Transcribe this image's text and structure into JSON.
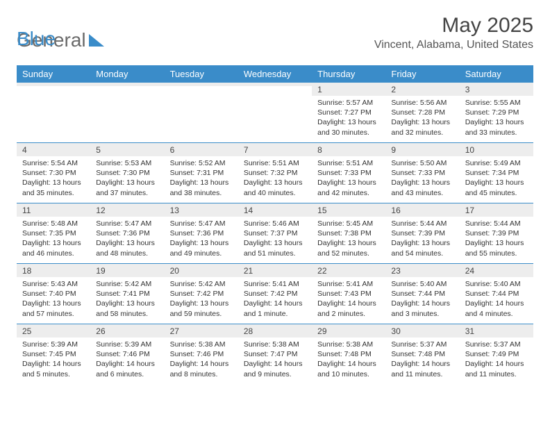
{
  "brand": {
    "general": "General",
    "blue": "Blue"
  },
  "title": {
    "month": "May 2025",
    "location": "Vincent, Alabama, United States"
  },
  "colors": {
    "accent": "#3a8cc9",
    "header_text": "#ffffff",
    "gray_bar": "#ededed",
    "text": "#333333"
  },
  "day_names": [
    "Sunday",
    "Monday",
    "Tuesday",
    "Wednesday",
    "Thursday",
    "Friday",
    "Saturday"
  ],
  "cells": [
    {
      "date": "",
      "sunrise": "",
      "sunset": "",
      "daylight": ""
    },
    {
      "date": "",
      "sunrise": "",
      "sunset": "",
      "daylight": ""
    },
    {
      "date": "",
      "sunrise": "",
      "sunset": "",
      "daylight": ""
    },
    {
      "date": "",
      "sunrise": "",
      "sunset": "",
      "daylight": ""
    },
    {
      "date": "1",
      "sunrise": "Sunrise: 5:57 AM",
      "sunset": "Sunset: 7:27 PM",
      "daylight": "Daylight: 13 hours and 30 minutes."
    },
    {
      "date": "2",
      "sunrise": "Sunrise: 5:56 AM",
      "sunset": "Sunset: 7:28 PM",
      "daylight": "Daylight: 13 hours and 32 minutes."
    },
    {
      "date": "3",
      "sunrise": "Sunrise: 5:55 AM",
      "sunset": "Sunset: 7:29 PM",
      "daylight": "Daylight: 13 hours and 33 minutes."
    },
    {
      "date": "4",
      "sunrise": "Sunrise: 5:54 AM",
      "sunset": "Sunset: 7:30 PM",
      "daylight": "Daylight: 13 hours and 35 minutes."
    },
    {
      "date": "5",
      "sunrise": "Sunrise: 5:53 AM",
      "sunset": "Sunset: 7:30 PM",
      "daylight": "Daylight: 13 hours and 37 minutes."
    },
    {
      "date": "6",
      "sunrise": "Sunrise: 5:52 AM",
      "sunset": "Sunset: 7:31 PM",
      "daylight": "Daylight: 13 hours and 38 minutes."
    },
    {
      "date": "7",
      "sunrise": "Sunrise: 5:51 AM",
      "sunset": "Sunset: 7:32 PM",
      "daylight": "Daylight: 13 hours and 40 minutes."
    },
    {
      "date": "8",
      "sunrise": "Sunrise: 5:51 AM",
      "sunset": "Sunset: 7:33 PM",
      "daylight": "Daylight: 13 hours and 42 minutes."
    },
    {
      "date": "9",
      "sunrise": "Sunrise: 5:50 AM",
      "sunset": "Sunset: 7:33 PM",
      "daylight": "Daylight: 13 hours and 43 minutes."
    },
    {
      "date": "10",
      "sunrise": "Sunrise: 5:49 AM",
      "sunset": "Sunset: 7:34 PM",
      "daylight": "Daylight: 13 hours and 45 minutes."
    },
    {
      "date": "11",
      "sunrise": "Sunrise: 5:48 AM",
      "sunset": "Sunset: 7:35 PM",
      "daylight": "Daylight: 13 hours and 46 minutes."
    },
    {
      "date": "12",
      "sunrise": "Sunrise: 5:47 AM",
      "sunset": "Sunset: 7:36 PM",
      "daylight": "Daylight: 13 hours and 48 minutes."
    },
    {
      "date": "13",
      "sunrise": "Sunrise: 5:47 AM",
      "sunset": "Sunset: 7:36 PM",
      "daylight": "Daylight: 13 hours and 49 minutes."
    },
    {
      "date": "14",
      "sunrise": "Sunrise: 5:46 AM",
      "sunset": "Sunset: 7:37 PM",
      "daylight": "Daylight: 13 hours and 51 minutes."
    },
    {
      "date": "15",
      "sunrise": "Sunrise: 5:45 AM",
      "sunset": "Sunset: 7:38 PM",
      "daylight": "Daylight: 13 hours and 52 minutes."
    },
    {
      "date": "16",
      "sunrise": "Sunrise: 5:44 AM",
      "sunset": "Sunset: 7:39 PM",
      "daylight": "Daylight: 13 hours and 54 minutes."
    },
    {
      "date": "17",
      "sunrise": "Sunrise: 5:44 AM",
      "sunset": "Sunset: 7:39 PM",
      "daylight": "Daylight: 13 hours and 55 minutes."
    },
    {
      "date": "18",
      "sunrise": "Sunrise: 5:43 AM",
      "sunset": "Sunset: 7:40 PM",
      "daylight": "Daylight: 13 hours and 57 minutes."
    },
    {
      "date": "19",
      "sunrise": "Sunrise: 5:42 AM",
      "sunset": "Sunset: 7:41 PM",
      "daylight": "Daylight: 13 hours and 58 minutes."
    },
    {
      "date": "20",
      "sunrise": "Sunrise: 5:42 AM",
      "sunset": "Sunset: 7:42 PM",
      "daylight": "Daylight: 13 hours and 59 minutes."
    },
    {
      "date": "21",
      "sunrise": "Sunrise: 5:41 AM",
      "sunset": "Sunset: 7:42 PM",
      "daylight": "Daylight: 14 hours and 1 minute."
    },
    {
      "date": "22",
      "sunrise": "Sunrise: 5:41 AM",
      "sunset": "Sunset: 7:43 PM",
      "daylight": "Daylight: 14 hours and 2 minutes."
    },
    {
      "date": "23",
      "sunrise": "Sunrise: 5:40 AM",
      "sunset": "Sunset: 7:44 PM",
      "daylight": "Daylight: 14 hours and 3 minutes."
    },
    {
      "date": "24",
      "sunrise": "Sunrise: 5:40 AM",
      "sunset": "Sunset: 7:44 PM",
      "daylight": "Daylight: 14 hours and 4 minutes."
    },
    {
      "date": "25",
      "sunrise": "Sunrise: 5:39 AM",
      "sunset": "Sunset: 7:45 PM",
      "daylight": "Daylight: 14 hours and 5 minutes."
    },
    {
      "date": "26",
      "sunrise": "Sunrise: 5:39 AM",
      "sunset": "Sunset: 7:46 PM",
      "daylight": "Daylight: 14 hours and 6 minutes."
    },
    {
      "date": "27",
      "sunrise": "Sunrise: 5:38 AM",
      "sunset": "Sunset: 7:46 PM",
      "daylight": "Daylight: 14 hours and 8 minutes."
    },
    {
      "date": "28",
      "sunrise": "Sunrise: 5:38 AM",
      "sunset": "Sunset: 7:47 PM",
      "daylight": "Daylight: 14 hours and 9 minutes."
    },
    {
      "date": "29",
      "sunrise": "Sunrise: 5:38 AM",
      "sunset": "Sunset: 7:48 PM",
      "daylight": "Daylight: 14 hours and 10 minutes."
    },
    {
      "date": "30",
      "sunrise": "Sunrise: 5:37 AM",
      "sunset": "Sunset: 7:48 PM",
      "daylight": "Daylight: 14 hours and 11 minutes."
    },
    {
      "date": "31",
      "sunrise": "Sunrise: 5:37 AM",
      "sunset": "Sunset: 7:49 PM",
      "daylight": "Daylight: 14 hours and 11 minutes."
    }
  ]
}
